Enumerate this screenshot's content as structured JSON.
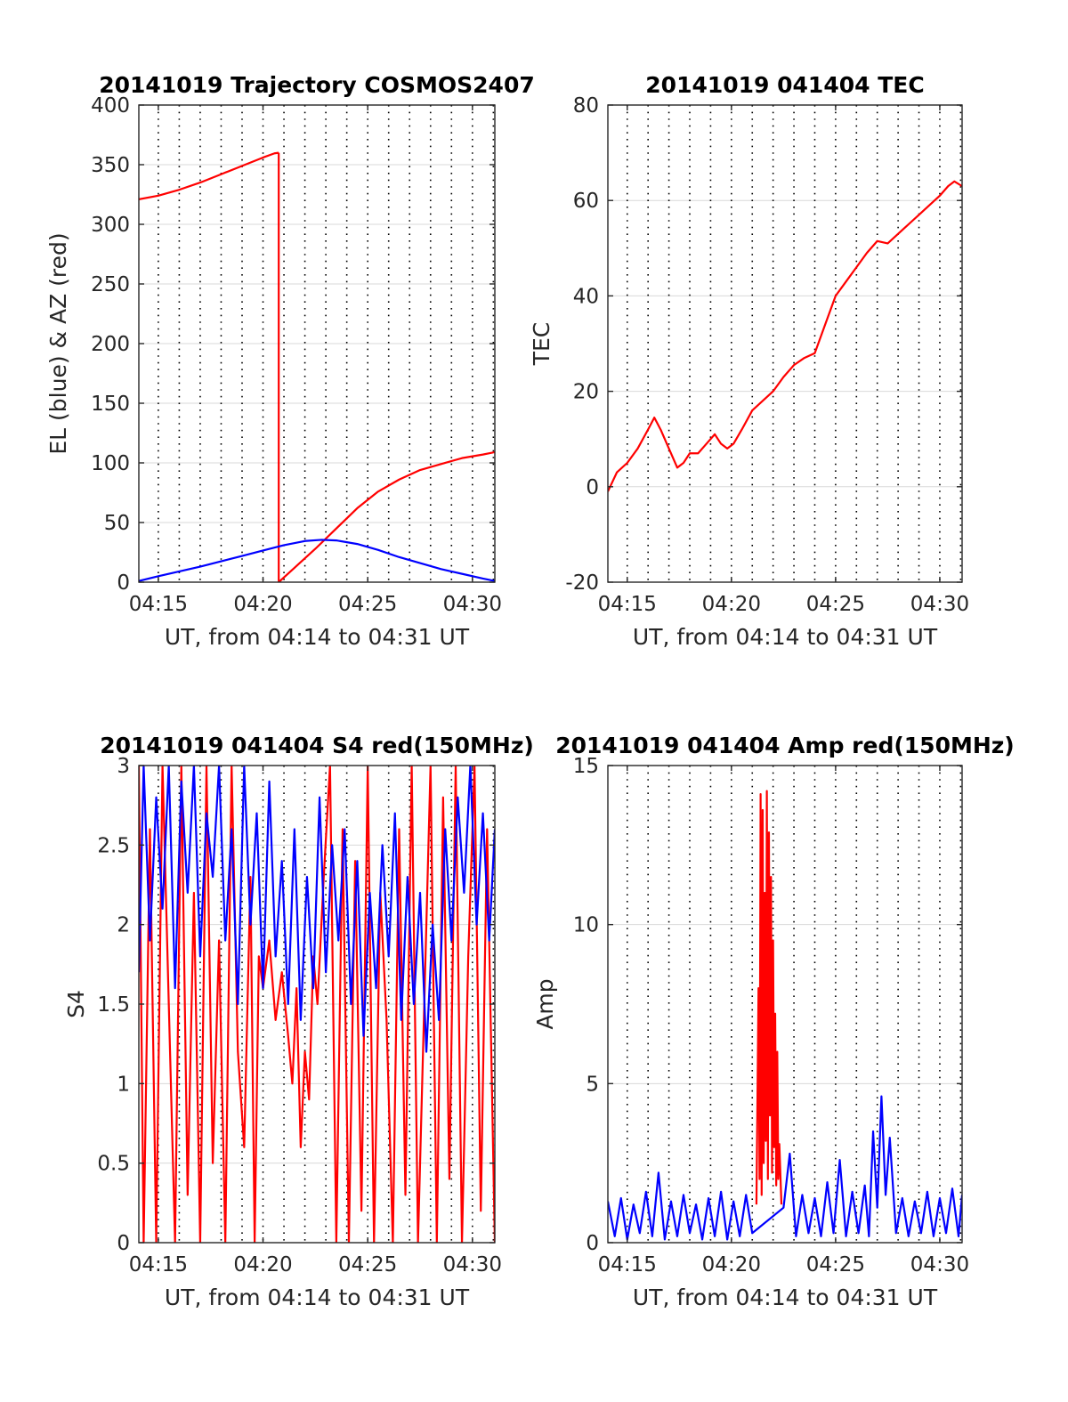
{
  "page": {
    "background": "#ffffff"
  },
  "colors": {
    "blue": "#0000ff",
    "red": "#ff0000",
    "axis": "#262626",
    "grid": "#d9d9d9"
  },
  "chart_data": [
    {
      "id": "trajectory",
      "type": "line",
      "title": "20141019 Trajectory COSMOS2407",
      "xlabel": "UT, from 04:14 to 04:31 UT",
      "ylabel": "EL (blue) & AZ (red)",
      "x_unit": "minutes after 04:00 UT",
      "xlim": [
        14.07,
        31.07
      ],
      "ylim": [
        0,
        400
      ],
      "xticks": [
        15,
        20,
        25,
        30
      ],
      "xtick_labels": [
        "04:15",
        "04:20",
        "04:25",
        "04:30"
      ],
      "yticks": [
        0,
        50,
        100,
        150,
        200,
        250,
        300,
        350,
        400
      ],
      "ytick_labels": [
        "0",
        "50",
        "100",
        "150",
        "200",
        "250",
        "300",
        "350",
        "400"
      ],
      "grid": true,
      "series": [
        {
          "color": "#ff0000",
          "x": [
            14.07,
            15,
            16,
            17,
            18,
            19,
            20,
            20.55,
            20.75
          ],
          "y": [
            321,
            324,
            329,
            335,
            342,
            349,
            356,
            359.5,
            360
          ]
        },
        {
          "color": "#ff0000",
          "x": [
            20.75,
            20.75
          ],
          "y": [
            360,
            0
          ]
        },
        {
          "color": "#ff0000",
          "x": [
            20.75,
            21.5,
            22.5,
            23.5,
            24.5,
            25.5,
            26.5,
            27.5,
            28.5,
            29.5,
            30.5,
            31.07
          ],
          "y": [
            0,
            12,
            28,
            45,
            62,
            76,
            86,
            94,
            99,
            104,
            107,
            109
          ]
        },
        {
          "color": "#0000ff",
          "x": [
            14.07,
            15,
            16,
            17,
            18,
            19,
            20,
            21,
            22,
            22.8,
            23.5,
            24.5,
            25.5,
            26.5,
            27.5,
            28.5,
            29.5,
            30.5,
            31.07
          ],
          "y": [
            1,
            5,
            9,
            13,
            17.5,
            22,
            26.5,
            31,
            34.5,
            35.5,
            35,
            32,
            27,
            21,
            16,
            11,
            7,
            3,
            1
          ]
        }
      ]
    },
    {
      "id": "tec",
      "type": "line",
      "title": "20141019 041404 TEC",
      "xlabel": "UT, from 04:14 to 04:31 UT",
      "ylabel": "TEC",
      "x_unit": "minutes after 04:00 UT",
      "xlim": [
        14.07,
        31.07
      ],
      "ylim": [
        -20,
        80
      ],
      "xticks": [
        15,
        20,
        25,
        30
      ],
      "xtick_labels": [
        "04:15",
        "04:20",
        "04:25",
        "04:30"
      ],
      "yticks": [
        -20,
        0,
        20,
        40,
        60,
        80
      ],
      "ytick_labels": [
        "-20",
        "0",
        "20",
        "40",
        "60",
        "80"
      ],
      "grid": true,
      "series": [
        {
          "color": "#ff0000",
          "x": [
            14.07,
            14.5,
            15,
            15.5,
            16,
            16.3,
            16.6,
            17,
            17.4,
            17.7,
            18,
            18.4,
            18.8,
            19.2,
            19.5,
            19.8,
            20.1,
            20.5,
            21,
            21.5,
            22,
            22.5,
            23,
            23.5,
            24,
            24.5,
            25,
            25.5,
            26,
            26.5,
            27,
            27.5,
            28,
            28.5,
            29,
            29.5,
            30,
            30.4,
            30.7,
            31.07
          ],
          "y": [
            -1,
            3,
            5,
            8,
            12,
            14.5,
            12,
            8,
            4,
            5,
            7,
            7,
            9,
            11,
            9,
            8,
            9,
            12,
            16,
            18,
            20,
            23,
            25.5,
            27,
            28,
            34,
            40,
            43,
            46,
            49,
            51.5,
            51,
            53,
            55,
            57,
            59,
            61,
            63,
            64,
            63
          ]
        }
      ]
    },
    {
      "id": "s4",
      "type": "line",
      "title": "20141019 041404 S4 red(150MHz)",
      "xlabel": "UT, from 04:14 to 04:31 UT",
      "ylabel": "S4",
      "x_unit": "minutes after 04:00 UT",
      "xlim": [
        14.07,
        31.07
      ],
      "ylim": [
        0,
        3
      ],
      "xticks": [
        15,
        20,
        25,
        30
      ],
      "xtick_labels": [
        "04:15",
        "04:20",
        "04:25",
        "04:30"
      ],
      "yticks": [
        0,
        0.5,
        1,
        1.5,
        2,
        2.5,
        3
      ],
      "ytick_labels": [
        "0",
        "0.5",
        "1",
        "1.5",
        "2",
        "2.5",
        "3"
      ],
      "grid": true,
      "series": [
        {
          "color": "#ff0000",
          "x": [
            14.07,
            14.3,
            14.6,
            14.9,
            15.2,
            15.5,
            15.8,
            16.1,
            16.4,
            16.7,
            17.0,
            17.3,
            17.6,
            17.9,
            18.2,
            18.5,
            18.8,
            19.1,
            19.4,
            19.6,
            19.8,
            20.0,
            20.3,
            20.6,
            20.9,
            21.2,
            21.4,
            21.6,
            21.8,
            22.0,
            22.2,
            22.4,
            22.6,
            22.9,
            23.2,
            23.5,
            23.8,
            24.1,
            24.4,
            24.7,
            25.0,
            25.3,
            25.6,
            25.9,
            26.2,
            26.5,
            26.8,
            27.1,
            27.4,
            27.7,
            28.0,
            28.3,
            28.6,
            28.9,
            29.2,
            29.5,
            29.8,
            30.1,
            30.4,
            30.7,
            31.07
          ],
          "y": [
            3,
            0,
            2.6,
            0,
            3,
            1.5,
            0,
            3,
            0.3,
            2.2,
            0,
            3,
            0.5,
            1.9,
            0,
            3,
            1.2,
            0.6,
            2.3,
            0,
            1.8,
            1.6,
            1.9,
            1.4,
            1.7,
            1.3,
            1.0,
            1.6,
            0.6,
            1.2,
            0.9,
            1.8,
            1.5,
            2.3,
            3,
            0,
            2.6,
            0,
            2.4,
            0.2,
            3,
            0,
            2.2,
            1.4,
            0,
            2.6,
            0.3,
            3,
            0,
            1.5,
            3,
            0,
            2.8,
            0.4,
            3,
            0,
            1.8,
            3,
            0.2,
            2.6,
            0
          ]
        },
        {
          "color": "#0000ff",
          "x": [
            14.07,
            14.3,
            14.6,
            14.9,
            15.2,
            15.5,
            15.8,
            16.1,
            16.4,
            16.7,
            17.0,
            17.3,
            17.6,
            17.9,
            18.2,
            18.5,
            18.8,
            19.1,
            19.4,
            19.7,
            20.0,
            20.3,
            20.6,
            20.9,
            21.2,
            21.5,
            21.8,
            22.1,
            22.4,
            22.7,
            23.0,
            23.3,
            23.6,
            23.9,
            24.2,
            24.5,
            24.8,
            25.1,
            25.4,
            25.7,
            26.0,
            26.3,
            26.6,
            26.9,
            27.2,
            27.5,
            27.8,
            28.1,
            28.4,
            28.7,
            29.0,
            29.3,
            29.6,
            29.9,
            30.2,
            30.5,
            30.8,
            31.07
          ],
          "y": [
            1.7,
            3,
            1.9,
            2.8,
            2.1,
            3,
            1.6,
            2.9,
            2.2,
            3,
            1.8,
            2.7,
            2.3,
            3,
            1.9,
            2.6,
            1.5,
            3,
            2.0,
            2.7,
            1.6,
            2.9,
            1.8,
            2.4,
            1.5,
            2.6,
            1.4,
            2.3,
            1.6,
            2.8,
            1.7,
            2.5,
            1.9,
            2.6,
            1.5,
            2.4,
            1.3,
            2.2,
            1.6,
            2.5,
            1.8,
            2.7,
            1.4,
            2.3,
            1.5,
            2.2,
            1.2,
            2.0,
            1.4,
            2.6,
            1.9,
            2.8,
            2.2,
            3,
            2.0,
            2.7,
            1.9,
            2.6
          ]
        }
      ]
    },
    {
      "id": "amp",
      "type": "line",
      "title": "20141019 041404 Amp red(150MHz)",
      "xlabel": "UT, from 04:14 to 04:31 UT",
      "ylabel": "Amp",
      "x_unit": "minutes after 04:00 UT",
      "xlim": [
        14.07,
        31.07
      ],
      "ylim": [
        0,
        15
      ],
      "xticks": [
        15,
        20,
        25,
        30
      ],
      "xtick_labels": [
        "04:15",
        "04:20",
        "04:25",
        "04:30"
      ],
      "yticks": [
        0,
        5,
        10,
        15
      ],
      "ytick_labels": [
        "0",
        "5",
        "10",
        "15"
      ],
      "grid": true,
      "series": [
        {
          "color": "#ff0000",
          "x": [
            21.2,
            21.3,
            21.35,
            21.4,
            21.45,
            21.5,
            21.55,
            21.6,
            21.65,
            21.7,
            21.75,
            21.8,
            21.85,
            21.9,
            21.95,
            22.0,
            22.05,
            22.1,
            22.15,
            22.2,
            22.25,
            22.3,
            22.4
          ],
          "y": [
            1.2,
            8,
            2,
            14.1,
            1.5,
            13.6,
            2.5,
            11,
            3.2,
            14.2,
            2.0,
            12.9,
            4.0,
            11.5,
            2.2,
            9.5,
            3.0,
            7.2,
            1.8,
            6.0,
            2.0,
            3.1,
            1.2
          ]
        },
        {
          "color": "#0000ff",
          "x": [
            14.07,
            14.4,
            14.7,
            15.0,
            15.3,
            15.6,
            15.9,
            16.2,
            16.5,
            16.8,
            17.1,
            17.4,
            17.7,
            18.0,
            18.3,
            18.6,
            18.9,
            19.2,
            19.5,
            19.8,
            20.1,
            20.4,
            20.7,
            21.0,
            22.5,
            22.8,
            23.1,
            23.4,
            23.7,
            24.0,
            24.3,
            24.6,
            24.9,
            25.2,
            25.5,
            25.8,
            26.1,
            26.4,
            26.6,
            26.8,
            27.0,
            27.2,
            27.4,
            27.6,
            27.9,
            28.2,
            28.5,
            28.8,
            29.1,
            29.4,
            29.7,
            30.0,
            30.3,
            30.6,
            30.9,
            31.07
          ],
          "y": [
            1.3,
            0.2,
            1.4,
            0.1,
            1.2,
            0.3,
            1.6,
            0.2,
            2.2,
            0.1,
            1.3,
            0.2,
            1.5,
            0.3,
            1.2,
            0.1,
            1.4,
            0.2,
            1.6,
            0.1,
            1.3,
            0.2,
            1.5,
            0.3,
            1.1,
            2.8,
            0.2,
            1.5,
            0.3,
            1.4,
            0.2,
            1.9,
            0.3,
            2.6,
            0.2,
            1.6,
            0.3,
            1.8,
            0.2,
            3.5,
            1.1,
            4.6,
            1.5,
            3.3,
            0.3,
            1.4,
            0.2,
            1.3,
            0.3,
            1.6,
            0.2,
            1.4,
            0.3,
            1.7,
            0.2,
            1.5
          ]
        }
      ]
    }
  ]
}
